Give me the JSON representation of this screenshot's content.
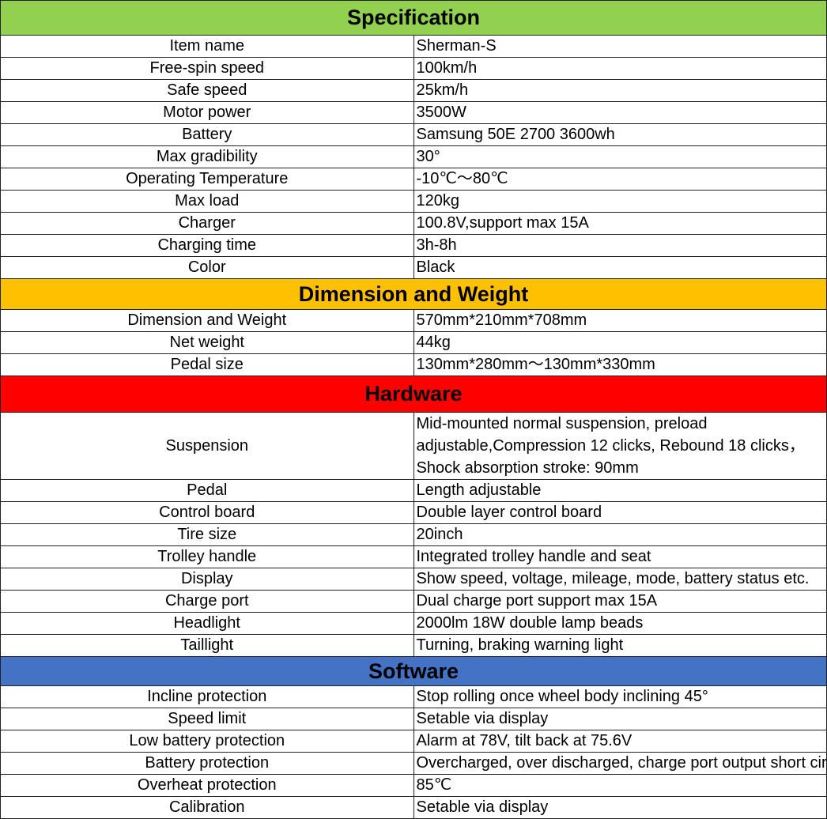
{
  "sections": [
    {
      "title": "Specification",
      "color": "#92d050",
      "rows": [
        {
          "label": "Item name",
          "value": "Sherman-S"
        },
        {
          "label": "Free-spin speed",
          "value": "100km/h"
        },
        {
          "label": "Safe speed",
          "value": "25km/h"
        },
        {
          "label": "Motor power",
          "value": "3500W"
        },
        {
          "label": "Battery",
          "value": "Samsung 50E 2700 3600wh"
        },
        {
          "label": "Max gradibility",
          "value": "30°"
        },
        {
          "label": "Operating Temperature",
          "value": "-10℃～80℃"
        },
        {
          "label": "Max load",
          "value": "120kg"
        },
        {
          "label": "Charger",
          "value": "100.8V,support max 15A"
        },
        {
          "label": "Charging time",
          "value": "3h-8h"
        },
        {
          "label": "Color",
          "value": "Black"
        }
      ]
    },
    {
      "title": "Dimension and Weight",
      "color": "#ffc000",
      "rows": [
        {
          "label": "Dimension and Weight",
          "value": "570mm*210mm*708mm"
        },
        {
          "label": "Net weight",
          "value": "44kg"
        },
        {
          "label": "Pedal size",
          "value": "130mm*280mm～130mm*330mm"
        }
      ]
    },
    {
      "title": "Hardware",
      "color": "#ff0000",
      "rows": [
        {
          "label": "Suspension",
          "value": "Mid-mounted normal suspension,  preload adjustable,Compression 12 clicks, Rebound 18 clicks，Shock absorption stroke: 90mm"
        },
        {
          "label": "Pedal",
          "value": "Length adjustable"
        },
        {
          "label": "Control board",
          "value": "Double layer control board"
        },
        {
          "label": "Tire size",
          "value": "20inch"
        },
        {
          "label": "Trolley handle",
          "value": "Integrated trolley handle and seat"
        },
        {
          "label": "Display",
          "value": "Show speed, voltage, mileage, mode, battery status etc."
        },
        {
          "label": "Charge port",
          "value": "Dual charge port support max 15A"
        },
        {
          "label": "Headlight",
          "value": "2000lm 18W double lamp beads"
        },
        {
          "label": "Taillight",
          "value": "Turning, braking warning light"
        }
      ]
    },
    {
      "title": "Software",
      "color": "#4472c4",
      "rows": [
        {
          "label": "Incline protection",
          "value": "Stop rolling once wheel body inclining 45°"
        },
        {
          "label": "Speed limit",
          "value": "Setable via display"
        },
        {
          "label": "Low battery protection",
          "value": "Alarm at 78V, tilt back at 75.6V"
        },
        {
          "label": "Battery protection",
          "value": "Overcharged, over discharged, charge port output short circuit protection"
        },
        {
          "label": "Overheat protection",
          "value": "85℃"
        },
        {
          "label": "Calibration",
          "value": "Setable via display"
        }
      ]
    }
  ]
}
